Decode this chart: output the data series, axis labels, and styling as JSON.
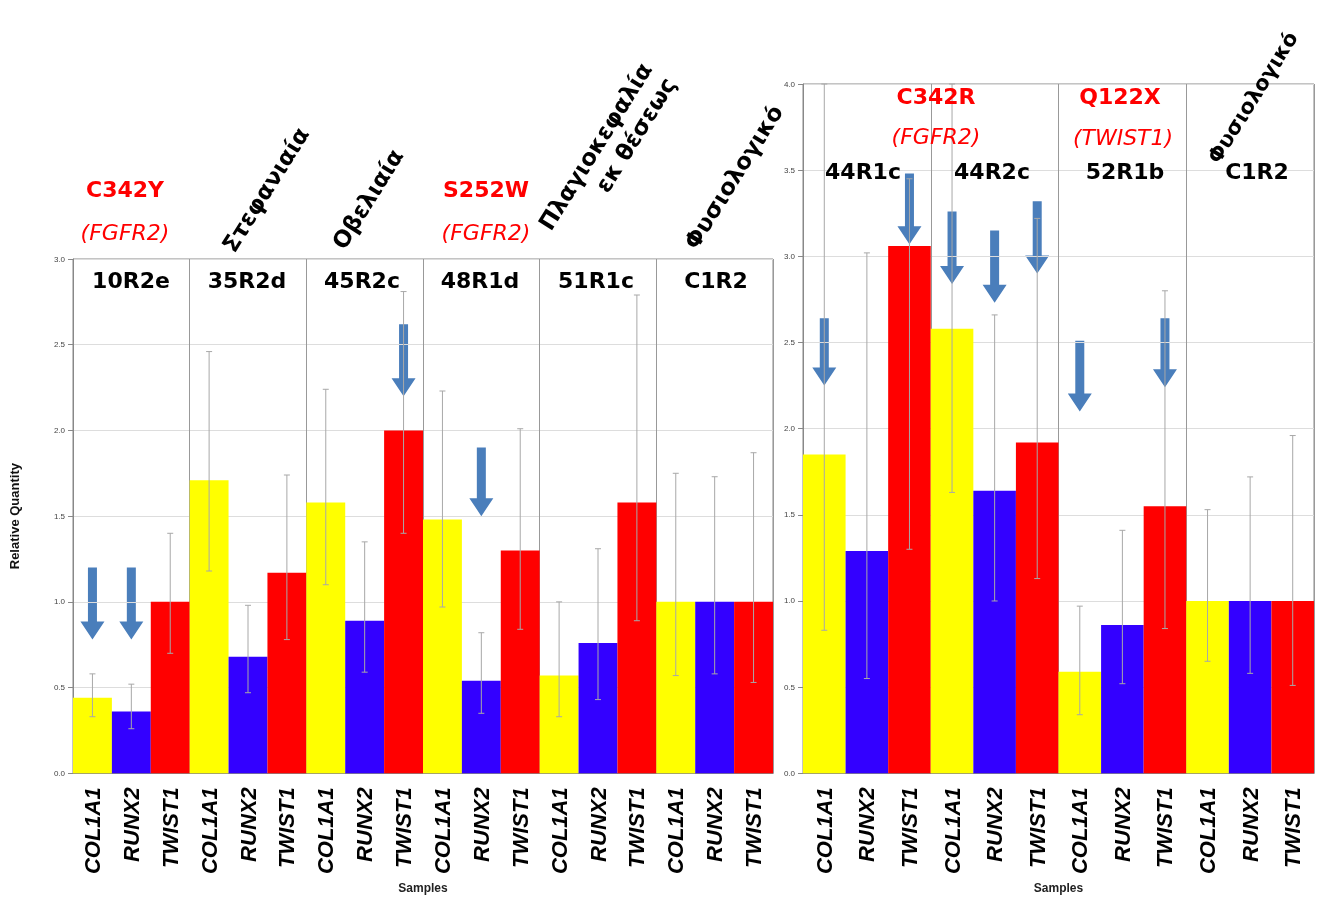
{
  "chart_data": [
    {
      "type": "bar",
      "xlabel": "Samples",
      "ylabel": "Relative Quantity",
      "categories": [
        "COL1A1",
        "RUNX2",
        "TWIST1",
        "COL1A1",
        "RUNX2",
        "TWIST1",
        "COL1A1",
        "RUNX2",
        "TWIST1",
        "COL1A1",
        "RUNX2",
        "TWIST1",
        "COL1A1",
        "RUNX2",
        "TWIST1",
        "COL1A1",
        "RUNX2",
        "TWIST1"
      ],
      "values": [
        0.44,
        0.36,
        1.0,
        1.71,
        0.68,
        1.17,
        1.58,
        0.89,
        2.0,
        1.48,
        0.54,
        1.3,
        0.57,
        0.76,
        1.58,
        1.0,
        1.0,
        1.0
      ],
      "colors": [
        "#ffff00",
        "#3300ff",
        "#ff0000",
        "#ffff00",
        "#3300ff",
        "#ff0000",
        "#ffff00",
        "#3300ff",
        "#ff0000",
        "#ffff00",
        "#3300ff",
        "#ff0000",
        "#ffff00",
        "#3300ff",
        "#ff0000",
        "#ffff00",
        "#3300ff",
        "#ff0000"
      ],
      "errors": [
        [
          0.33,
          0.58
        ],
        [
          0.26,
          0.52
        ],
        [
          0.7,
          1.4
        ],
        [
          1.18,
          2.46
        ],
        [
          0.47,
          0.98
        ],
        [
          0.78,
          1.74
        ],
        [
          1.1,
          2.24
        ],
        [
          0.59,
          1.35
        ],
        [
          1.4,
          2.81
        ],
        [
          0.97,
          2.23
        ],
        [
          0.35,
          0.82
        ],
        [
          0.84,
          2.01
        ],
        [
          0.33,
          1.0
        ],
        [
          0.43,
          1.31
        ],
        [
          0.89,
          2.79
        ],
        [
          0.57,
          1.75
        ],
        [
          0.58,
          1.73
        ],
        [
          0.53,
          1.87
        ]
      ],
      "ylim": [
        0,
        3
      ],
      "yticks": [
        {
          "value": 0,
          "label": "0.0"
        },
        0.5,
        {
          "value": 1,
          "label": "1.0"
        },
        1.5,
        {
          "value": 2,
          "label": "2.0"
        },
        2.5,
        {
          "value": 3,
          "label": "3.0"
        }
      ],
      "grid": "y",
      "annotations": [
        "10R2e",
        "35R2d",
        "45R2c",
        "48R1d",
        "51R1c",
        "C1R2",
        "C342Y",
        "(FGFR2)",
        "Στεφανιαία",
        "Οβελιαία",
        "S252W",
        "(FGFR2)",
        "Πλαγιοκεφαλία\nεκ θέσεως",
        "Φυσιολογικό"
      ]
    },
    {
      "type": "bar",
      "xlabel": "Samples",
      "categories": [
        "COL1A1",
        "RUNX2",
        "TWIST1",
        "COL1A1",
        "RUNX2",
        "TWIST1",
        "COL1A1",
        "RUNX2",
        "TWIST1",
        "COL1A1",
        "RUNX2",
        "TWIST1"
      ],
      "values": [
        1.85,
        1.29,
        3.06,
        2.58,
        1.64,
        1.92,
        0.59,
        0.86,
        1.55,
        1.0,
        1.0,
        1.0
      ],
      "colors": [
        "#ffff00",
        "#3300ff",
        "#ff0000",
        "#ffff00",
        "#3300ff",
        "#ff0000",
        "#ffff00",
        "#3300ff",
        "#ff0000",
        "#ffff00",
        "#3300ff",
        "#ff0000"
      ],
      "errors": [
        [
          0.83,
          4.0
        ],
        [
          0.55,
          3.02
        ],
        [
          1.3,
          3.45
        ],
        [
          1.63,
          4.0
        ],
        [
          1.0,
          2.66
        ],
        [
          1.13,
          3.22
        ],
        [
          0.34,
          0.97
        ],
        [
          0.52,
          1.41
        ],
        [
          0.84,
          2.8
        ],
        [
          0.65,
          1.53
        ],
        [
          0.58,
          1.72
        ],
        [
          0.51,
          1.96
        ]
      ],
      "ylim": [
        0,
        4
      ],
      "yticks": [
        {
          "value": 0,
          "label": "0.0"
        },
        0.5,
        {
          "value": 1,
          "label": "1.0"
        },
        1.5,
        {
          "value": 2,
          "label": "2.0"
        },
        2.5,
        {
          "value": 3,
          "label": "3.0"
        },
        3.5,
        {
          "value": 4,
          "label": "4.0"
        }
      ],
      "grid": "y",
      "annotations": [
        "44R1c",
        "44R2c",
        "52R1b",
        "C1R2",
        "C342R",
        "(FGFR2)",
        "Q122X",
        "(TWIST1)",
        "Φυσιολογικό"
      ]
    }
  ]
}
